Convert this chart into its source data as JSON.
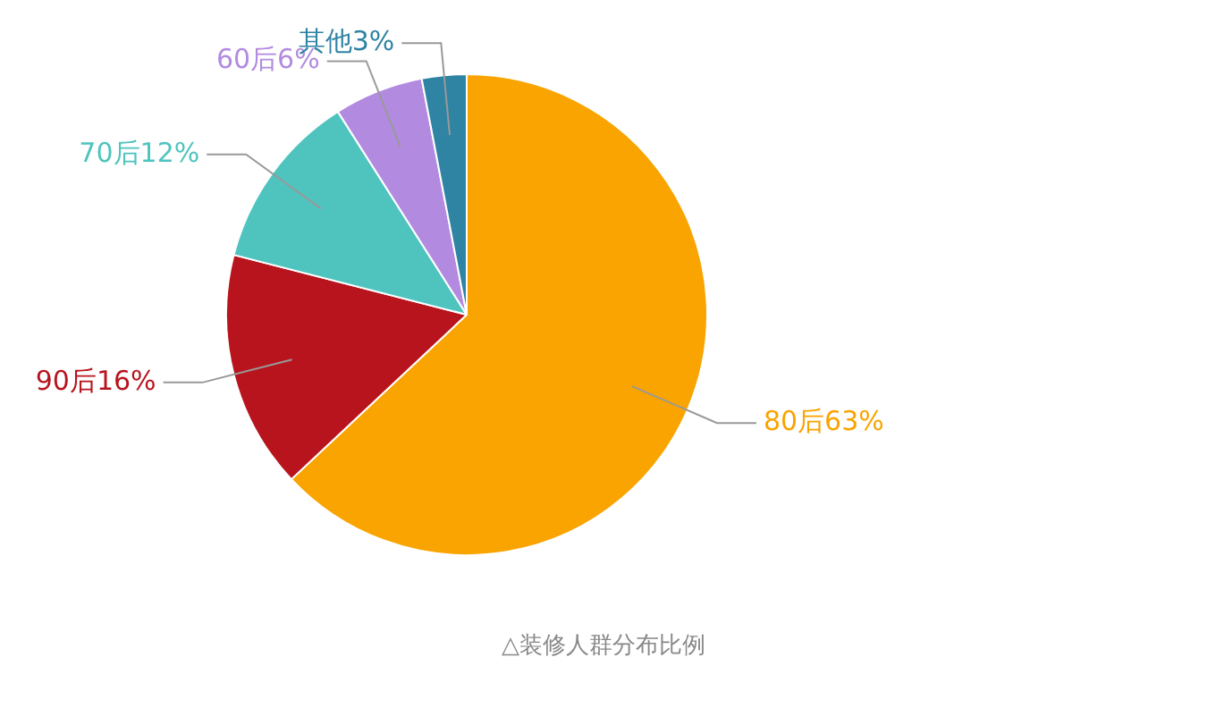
{
  "chart_data": {
    "type": "pie",
    "categories": [
      "80后",
      "90后",
      "70后",
      "60后",
      "其他"
    ],
    "values": [
      63,
      16,
      12,
      6,
      3
    ],
    "colors": [
      "#f9a400",
      "#b8141d",
      "#4fc4bf",
      "#b28be0",
      "#2f83a3"
    ],
    "value_labels": [
      "63%",
      "16%",
      "12%",
      "6%",
      "3%"
    ],
    "legend": false,
    "annotations": [
      "△装修人群分布比例"
    ]
  }
}
